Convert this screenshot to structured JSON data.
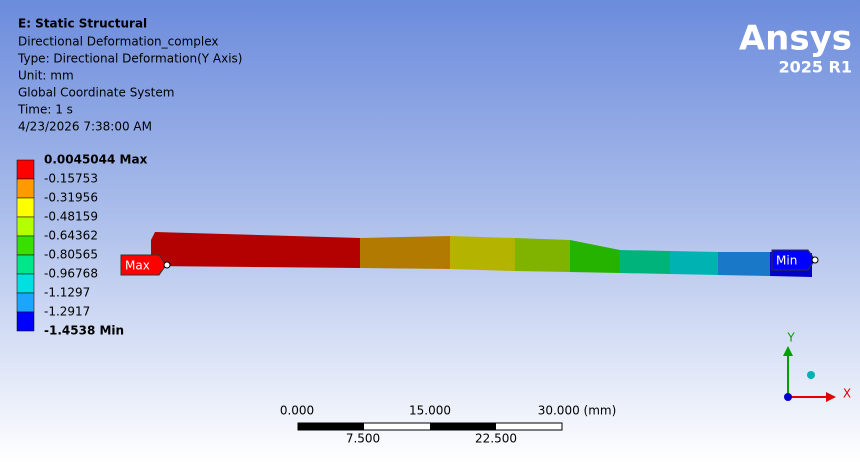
{
  "header": {
    "title": "E: Static Structural",
    "lines": [
      "Directional Deformation_complex",
      "Type: Directional Deformation(Y Axis)",
      "Unit: mm",
      "Global Coordinate System",
      "Time: 1 s",
      "4/23/2026 7:38:00 AM"
    ]
  },
  "legend": {
    "labels": [
      "0.0045044 Max",
      "-0.15753",
      "-0.31956",
      "-0.48159",
      "-0.64362",
      "-0.80565",
      "-0.96768",
      "-1.1297",
      "-1.2917",
      "-1.4538 Min"
    ],
    "colors": [
      "#ff0000",
      "#ff9a00",
      "#ffff00",
      "#b4ff00",
      "#38e000",
      "#00e68a",
      "#00e0e0",
      "#1ca5ff",
      "#0000ff"
    ]
  },
  "probes": {
    "max": "Max",
    "min": "Min"
  },
  "scale_bar": {
    "top_labels": [
      "0.000",
      "15.000",
      "30.000 (mm)"
    ],
    "bottom_labels": [
      "7.500",
      "22.500"
    ]
  },
  "triad": {
    "x": "X",
    "y": "Y"
  },
  "logo": {
    "brand": "Ansys",
    "version": "2025 R1"
  }
}
